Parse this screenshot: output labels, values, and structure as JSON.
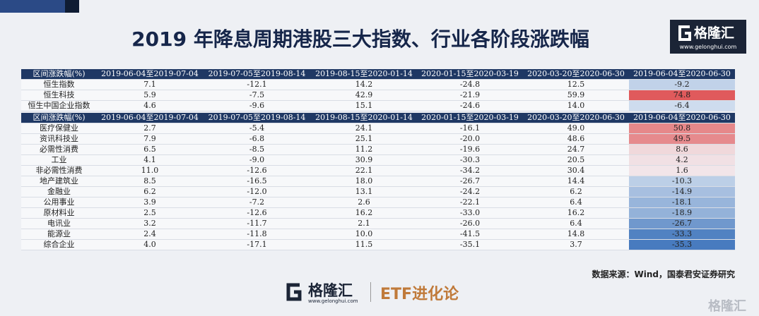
{
  "header": {
    "title": "2019 年降息周期港股三大指数、行业各阶段涨跌幅",
    "logo_name": "格隆汇",
    "logo_url": "www.gelonghui.com"
  },
  "table_1": {
    "columns": [
      "区间涨跌幅(%)",
      "2019-06-04至2019-07-04",
      "2019-07-05至2019-08-14",
      "2019-08-15至2020-01-14",
      "2020-01-15至2020-03-19",
      "2020-03-20至2020-06-30",
      "2019-06-04至2020-06-30"
    ],
    "rows": [
      [
        "恒生指数",
        "7.1",
        "-12.1",
        "14.2",
        "-24.8",
        "12.5",
        "-9.2"
      ],
      [
        "恒生科技",
        "5.9",
        "-7.5",
        "42.9",
        "-21.9",
        "59.9",
        "74.8"
      ],
      [
        "恒生中国企业指数",
        "4.6",
        "-9.6",
        "15.1",
        "-24.6",
        "14.0",
        "-6.4"
      ]
    ]
  },
  "table_2": {
    "columns": [
      "区间涨跌幅(%)",
      "2019-06-04至2019-07-04",
      "2019-07-05至2019-08-14",
      "2019-08-15至2020-01-14",
      "2020-01-15至2020-03-19",
      "2020-03-20至2020-06-30",
      "2019-06-04至2020-06-30"
    ],
    "rows": [
      [
        "医疗保健业",
        "2.7",
        "-5.4",
        "24.1",
        "-16.1",
        "49.0",
        "50.8"
      ],
      [
        "资讯科技业",
        "7.9",
        "-6.8",
        "25.1",
        "-20.0",
        "48.6",
        "49.5"
      ],
      [
        "必需性消费",
        "6.5",
        "-8.5",
        "11.2",
        "-19.6",
        "24.7",
        "8.6"
      ],
      [
        "工业",
        "4.1",
        "-9.0",
        "30.9",
        "-30.3",
        "20.5",
        "4.2"
      ],
      [
        "非必需性消费",
        "11.0",
        "-12.6",
        "22.1",
        "-34.2",
        "30.4",
        "1.6"
      ],
      [
        "地产建筑业",
        "8.5",
        "-16.5",
        "18.0",
        "-26.7",
        "14.4",
        "-10.3"
      ],
      [
        "金融业",
        "6.2",
        "-12.0",
        "13.1",
        "-24.2",
        "6.2",
        "-14.9"
      ],
      [
        "公用事业",
        "3.9",
        "-7.2",
        "2.6",
        "-22.1",
        "6.4",
        "-18.1"
      ],
      [
        "原材料业",
        "2.5",
        "-12.6",
        "16.2",
        "-33.0",
        "16.2",
        "-18.9"
      ],
      [
        "电讯业",
        "3.2",
        "-11.7",
        "2.1",
        "-26.0",
        "6.4",
        "-26.7"
      ],
      [
        "能源业",
        "2.4",
        "-11.8",
        "10.0",
        "-41.5",
        "14.8",
        "-33.3"
      ],
      [
        "综合企业",
        "4.0",
        "-17.1",
        "11.5",
        "-35.1",
        "3.7",
        "-35.3"
      ]
    ]
  },
  "source": "数据来源：Wind，国泰君安证券研究",
  "footer": {
    "logo_name": "格隆汇",
    "logo_url": "www.gelonghui.com",
    "tagline": "ETF进化论"
  },
  "watermark": "格隆汇"
}
